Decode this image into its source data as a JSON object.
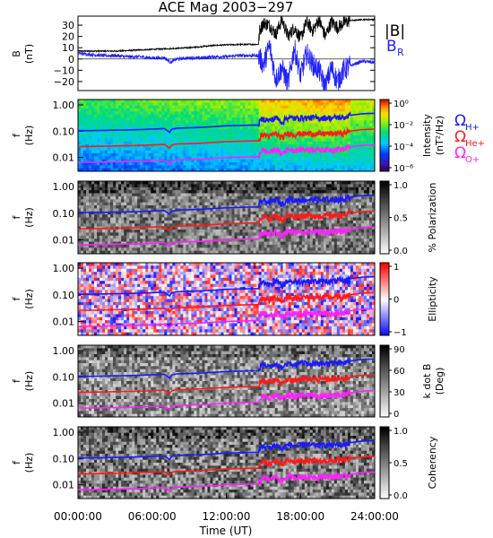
{
  "title": "ACE Mag 2003−297",
  "colors": {
    "br": "#2020ff",
    "hplus": "#1a1aff",
    "heplus": "#ff1a1a",
    "oplus": "#ff20ff",
    "btot": "#000000"
  },
  "chart_data": [
    {
      "type": "line",
      "panel": "magnetic-field",
      "ylabel": "B",
      "yunit": "(nT)",
      "ylim": [
        -28,
        38
      ],
      "yticks": [
        "30",
        "20",
        "10",
        "0",
        "−10",
        "−20"
      ],
      "xlim": [
        0,
        24
      ],
      "series": [
        {
          "name": "|B|",
          "color": "black",
          "x": [
            0,
            1,
            2,
            3,
            4,
            5,
            6,
            7,
            8,
            9,
            10,
            11,
            12,
            13,
            14,
            14.6,
            14.7,
            15,
            15.5,
            16,
            16.5,
            17,
            17.5,
            18,
            18.5,
            19,
            19.5,
            20,
            20.5,
            21,
            21.5,
            22,
            23,
            24
          ],
          "values": [
            7,
            7,
            7,
            7,
            7.5,
            8,
            8.5,
            9,
            9.5,
            10,
            11,
            12,
            12.5,
            12.8,
            13,
            13,
            25,
            32,
            30,
            22,
            35,
            20,
            28,
            18,
            33,
            25,
            35,
            20,
            33,
            28,
            32,
            34,
            35,
            35
          ]
        },
        {
          "name": "B",
          "sub": "R",
          "color": "blue",
          "x": [
            0,
            1,
            2,
            3,
            4,
            5,
            6,
            7,
            7.5,
            8,
            9,
            10,
            11,
            12,
            13,
            14,
            14.6,
            15,
            15.5,
            16,
            16.5,
            17,
            17.5,
            18,
            18.5,
            19,
            19.5,
            20,
            20.5,
            21,
            21.5,
            22,
            23,
            24
          ],
          "values": [
            5,
            4,
            3,
            3,
            2,
            2,
            1,
            1,
            -3,
            0,
            1,
            1,
            2,
            2,
            3,
            3,
            3,
            -5,
            12,
            -18,
            -8,
            -22,
            10,
            -15,
            5,
            -5,
            -10,
            -25,
            -8,
            -20,
            -10,
            -6,
            -2,
            -3
          ]
        }
      ]
    },
    {
      "type": "heatmap",
      "panel": "intensity",
      "ylabel": "f",
      "yunit": "(Hz)",
      "yticks": [
        "1.00",
        "0.10",
        "0.01"
      ],
      "colorbar_label": "Intensity",
      "colorbar_unit": "(nT²/Hz)",
      "colorbar_ticks": [
        "10⁰",
        "10⁻²",
        "10⁻⁴",
        "10⁻⁶"
      ]
    },
    {
      "type": "heatmap",
      "panel": "polarization",
      "ylabel": "f",
      "yunit": "(Hz)",
      "yticks": [
        "1.00",
        "0.10",
        "0.01"
      ],
      "colorbar_label": "% Polarization",
      "colorbar_ticks": [
        "1.0",
        "0.5",
        "0.0"
      ]
    },
    {
      "type": "heatmap",
      "panel": "ellipticity",
      "ylabel": "f",
      "yunit": "(Hz)",
      "yticks": [
        "1.00",
        "0.10",
        "0.01"
      ],
      "colorbar_label": "Ellipticity",
      "colorbar_ticks": [
        "1",
        "0",
        "−1"
      ]
    },
    {
      "type": "heatmap",
      "panel": "k-dot-b",
      "ylabel": "f",
      "yunit": "(Hz)",
      "yticks": [
        "1.00",
        "0.10",
        "0.01"
      ],
      "colorbar_label": "k dot B",
      "colorbar_unit": "(Deg)",
      "colorbar_ticks": [
        "90",
        "60",
        "30",
        "0"
      ]
    },
    {
      "type": "heatmap",
      "panel": "coherency",
      "ylabel": "f",
      "yunit": "(Hz)",
      "yticks": [
        "1.00",
        "0.10",
        "0.01"
      ],
      "colorbar_label": "Coherency",
      "colorbar_ticks": [
        "1.0",
        "0.5",
        "0.0"
      ]
    }
  ],
  "gyrofrequency": {
    "x": [
      0,
      1,
      2,
      3,
      4,
      5,
      6,
      7,
      7.4,
      7.6,
      8,
      9,
      10,
      11,
      12,
      13,
      14,
      14.6,
      14.8,
      15,
      15.5,
      16,
      16.5,
      17,
      17.5,
      18,
      18.5,
      19,
      19.5,
      20,
      20.5,
      21,
      21.5,
      22,
      23,
      24
    ],
    "h_plus_hz": [
      0.105,
      0.105,
      0.107,
      0.11,
      0.112,
      0.115,
      0.12,
      0.125,
      0.09,
      0.12,
      0.13,
      0.135,
      0.14,
      0.15,
      0.16,
      0.165,
      0.17,
      0.17,
      0.28,
      0.3,
      0.25,
      0.33,
      0.22,
      0.34,
      0.3,
      0.33,
      0.32,
      0.33,
      0.31,
      0.33,
      0.32,
      0.34,
      0.33,
      0.4,
      0.46,
      0.48
    ],
    "h_plus_label": "Ω",
    "h_plus_sub": "H+",
    "he_plus_label": "Ω",
    "he_plus_sub": "He+",
    "o_plus_label": "Ω",
    "o_plus_sub": "O+"
  },
  "xaxis": {
    "label": "Time  (UT)",
    "ticks": [
      "00:00:00",
      "06:00:00",
      "12:00:00",
      "18:00:00",
      "24:00:00"
    ],
    "tick_values": [
      0,
      6,
      12,
      18,
      24
    ]
  },
  "legend": {
    "btot_label": "|B|",
    "br_label": "B",
    "br_sub": "R"
  }
}
